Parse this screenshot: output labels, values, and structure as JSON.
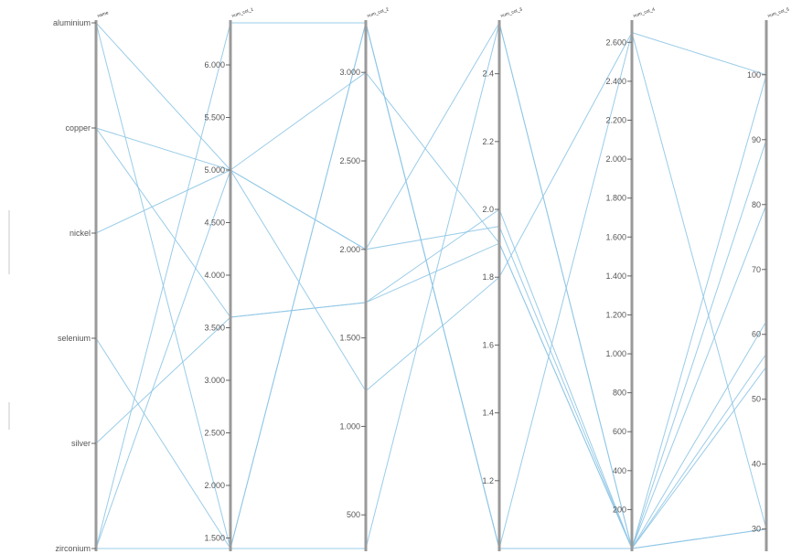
{
  "chart_data": {
    "type": "parallel-coordinates",
    "line_color": "#8fc6e6",
    "axis_color": "#9a9a9a",
    "axes": [
      {
        "name": "col_0",
        "label": "name",
        "kind": "categorical",
        "categories": [
          "aluminium",
          "copper",
          "nickel",
          "selenium",
          "silver",
          "zirconium"
        ]
      },
      {
        "name": "col_1",
        "label": "num_col_1",
        "kind": "numeric",
        "range": [
          1400,
          6400
        ],
        "ticks": [
          1500,
          2000,
          2500,
          3000,
          3500,
          4000,
          4500,
          5000,
          5500,
          6000
        ],
        "tick_labels": [
          "1.500",
          "2.000",
          "2.500",
          "3.000",
          "3.500",
          "4.000",
          "4.500",
          "5.000",
          "5.500",
          "6.000"
        ]
      },
      {
        "name": "col_2",
        "label": "num_col_2",
        "kind": "numeric",
        "range": [
          310,
          3280
        ],
        "ticks": [
          500,
          1000,
          1500,
          2000,
          2500,
          3000
        ],
        "tick_labels": [
          "500",
          "1.000",
          "1.500",
          "2.000",
          "2.500",
          "3.000"
        ]
      },
      {
        "name": "col_3",
        "label": "num_col_3",
        "kind": "numeric",
        "range": [
          1.0,
          2.55
        ],
        "ticks": [
          1.2,
          1.4,
          1.6,
          1.8,
          2.0,
          2.2,
          2.4
        ],
        "tick_labels": [
          "1.2",
          "1.4",
          "1.6",
          "1.8",
          "2.0",
          "2.2",
          "2.4"
        ]
      },
      {
        "name": "col_4",
        "label": "num_col_4",
        "kind": "numeric",
        "range": [
          0,
          2700
        ],
        "ticks": [
          200,
          400,
          600,
          800,
          1000,
          1200,
          1400,
          1600,
          1800,
          2000,
          2200,
          2400,
          2600
        ],
        "tick_labels": [
          "200",
          "400",
          "600",
          "800",
          "1.000",
          "1.200",
          "1.400",
          "1.600",
          "1.800",
          "2.000",
          "2.200",
          "2.400",
          "2.600"
        ]
      },
      {
        "name": "col_5",
        "label": "num_col_5",
        "kind": "numeric",
        "range": [
          27,
          108
        ],
        "ticks": [
          30,
          40,
          50,
          60,
          70,
          80,
          90,
          100
        ],
        "tick_labels": [
          "30",
          "40",
          "50",
          "60",
          "70",
          "80",
          "90",
          "100"
        ]
      }
    ],
    "rows": [
      {
        "col_0": "aluminium",
        "col_1": 1400,
        "col_2": 3280,
        "col_3": 1.0,
        "col_4": 2650,
        "col_5": 30
      },
      {
        "col_0": "aluminium",
        "col_1": 5000,
        "col_2": 2000,
        "col_3": 1.95,
        "col_4": 0,
        "col_5": 100
      },
      {
        "col_0": "copper",
        "col_1": 5000,
        "col_2": 3000,
        "col_3": 1.9,
        "col_4": 0,
        "col_5": 90
      },
      {
        "col_0": "nickel",
        "col_1": 5000,
        "col_2": 2000,
        "col_3": 2.55,
        "col_4": 0,
        "col_5": 80
      },
      {
        "col_0": "selenium",
        "col_1": 1400,
        "col_2": 310,
        "col_3": 2.55,
        "col_4": 0,
        "col_5": 62
      },
      {
        "col_0": "silver",
        "col_1": 3600,
        "col_2": 1700,
        "col_3": 1.9,
        "col_4": 0,
        "col_5": 57
      },
      {
        "col_0": "zirconium",
        "col_1": 6400,
        "col_2": 3280,
        "col_3": 1.0,
        "col_4": 0,
        "col_5": 30
      },
      {
        "col_0": "zirconium",
        "col_1": 5000,
        "col_2": 1200,
        "col_3": 1.8,
        "col_4": 2650,
        "col_5": 100
      },
      {
        "col_0": "copper",
        "col_1": 3600,
        "col_2": 1700,
        "col_3": 2.0,
        "col_4": 0,
        "col_5": 55
      },
      {
        "col_0": "zirconium",
        "col_1": 1400,
        "col_2": 3280,
        "col_3": 1.0,
        "col_4": 0,
        "col_5": 30
      }
    ]
  }
}
